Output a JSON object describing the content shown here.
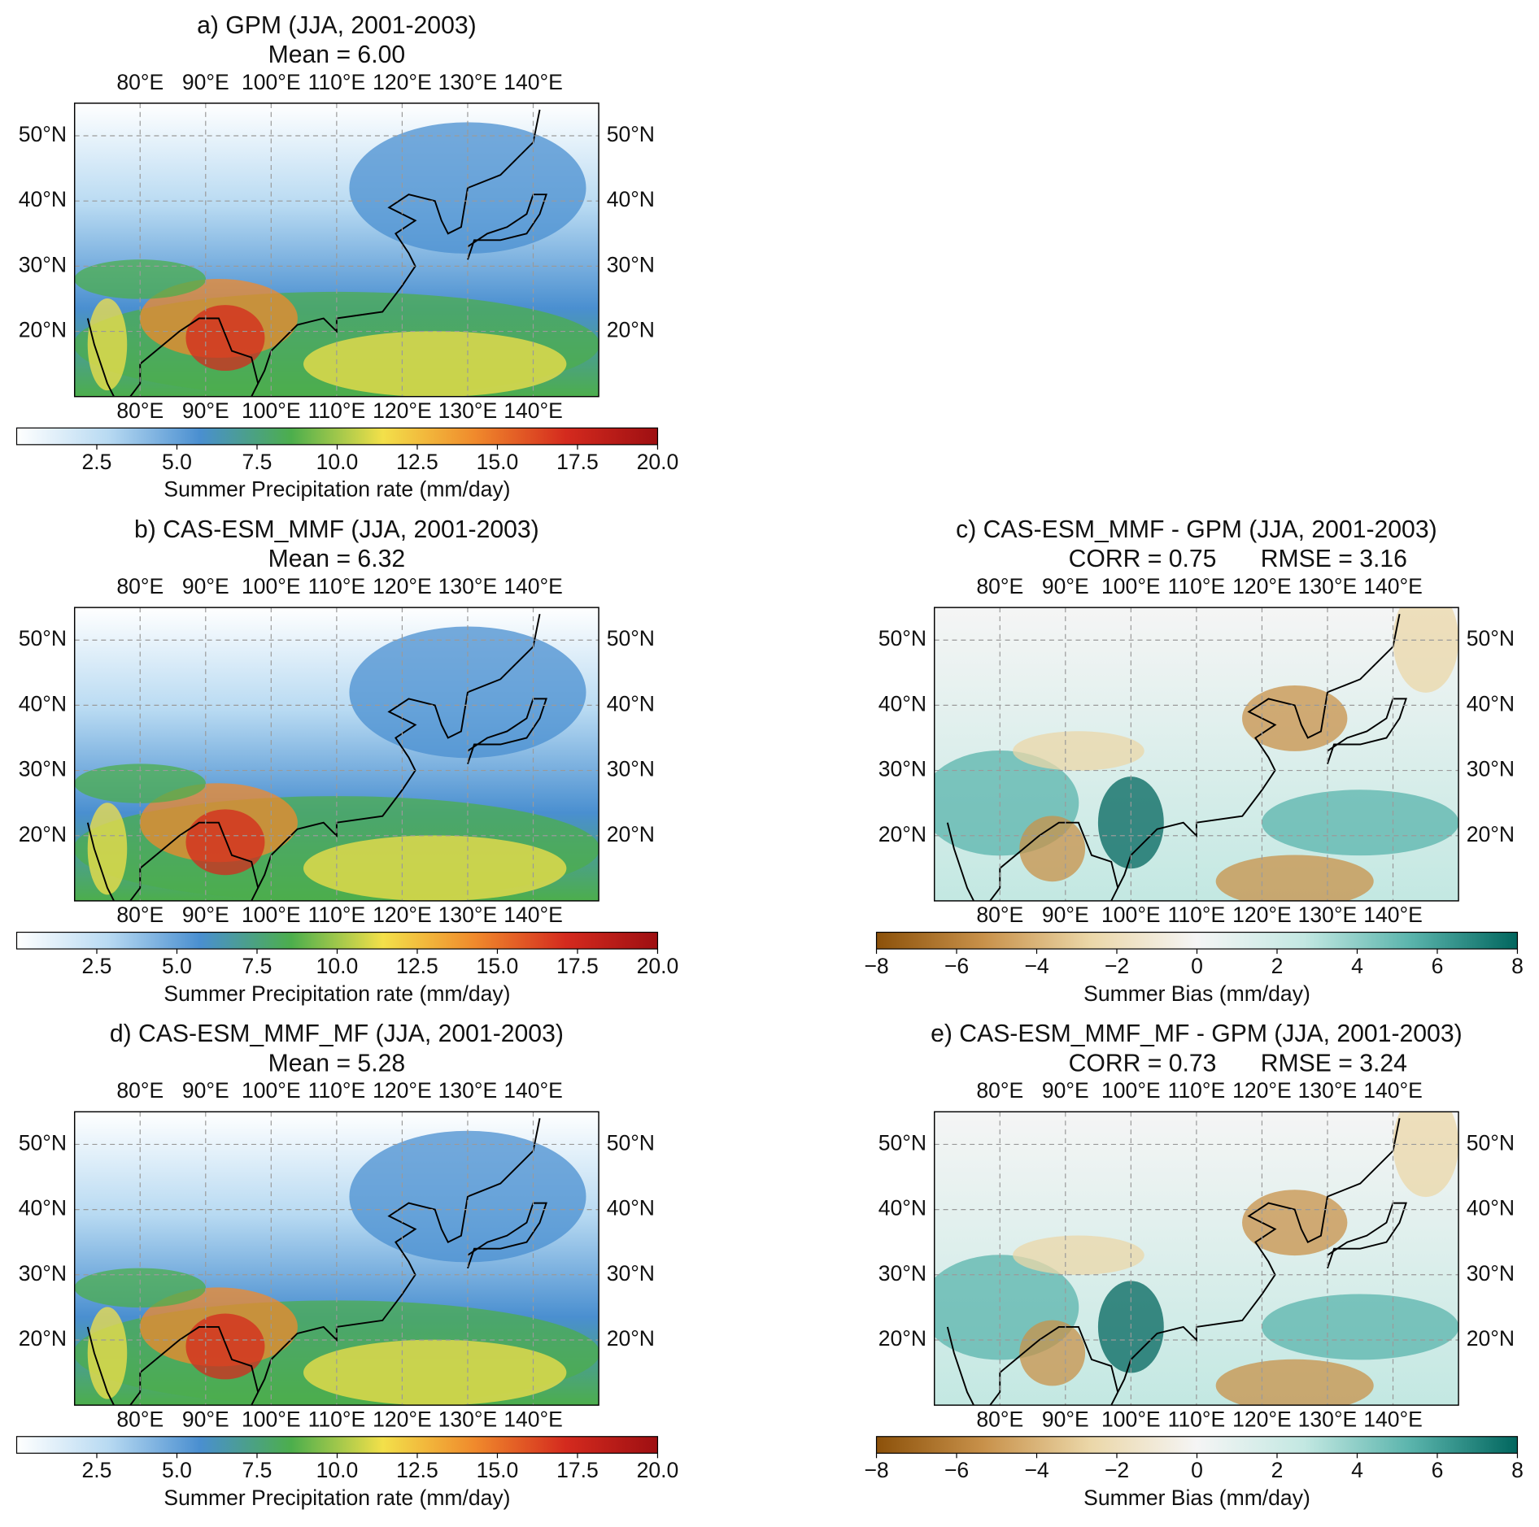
{
  "map": {
    "xlim": [
      70,
      150
    ],
    "ylim": [
      10,
      55
    ],
    "xticks": [
      {
        "value": 80,
        "label": "80°E"
      },
      {
        "value": 90,
        "label": "90°E"
      },
      {
        "value": 100,
        "label": "100°E"
      },
      {
        "value": 110,
        "label": "110°E"
      },
      {
        "value": 120,
        "label": "120°E"
      },
      {
        "value": 130,
        "label": "130°E"
      },
      {
        "value": 140,
        "label": "140°E"
      }
    ],
    "yticks": [
      {
        "value": 20,
        "label": "20°N"
      },
      {
        "value": 30,
        "label": "30°N"
      },
      {
        "value": 40,
        "label": "40°N"
      },
      {
        "value": 50,
        "label": "50°N"
      }
    ],
    "grid": true
  },
  "panels": [
    {
      "kind": "precip",
      "title": "a) GPM (JJA, 2001-2003)",
      "subtitle": "Mean = 6.00",
      "colorbar": {
        "label": "Summer Precipitation rate (mm/day)",
        "lim": [
          0,
          20
        ],
        "ticks": [
          2.5,
          {
            "value": 5,
            "label": "5.0"
          },
          7.5,
          {
            "value": 10,
            "label": "10.0"
          },
          12.5,
          {
            "value": 15,
            "label": "15.0"
          },
          17.5,
          {
            "value": 20,
            "label": "20.0"
          }
        ],
        "colors": [
          "#ffffff",
          "#b8daf2",
          "#4a8fd0",
          "#4cae4c",
          "#f3e04a",
          "#f08a2c",
          "#d42a1e",
          "#9e0f12"
        ]
      }
    },
    {
      "kind": "precip",
      "title": "b) CAS-ESM_MMF (JJA, 2001-2003)",
      "subtitle": "Mean = 6.32",
      "colorbar": {
        "label": "Summer Precipitation rate (mm/day)",
        "lim": [
          0,
          20
        ],
        "ticks": [
          2.5,
          {
            "value": 5,
            "label": "5.0"
          },
          7.5,
          {
            "value": 10,
            "label": "10.0"
          },
          12.5,
          {
            "value": 15,
            "label": "15.0"
          },
          17.5,
          {
            "value": 20,
            "label": "20.0"
          }
        ],
        "colors": [
          "#ffffff",
          "#b8daf2",
          "#4a8fd0",
          "#4cae4c",
          "#f3e04a",
          "#f08a2c",
          "#d42a1e",
          "#9e0f12"
        ]
      }
    },
    {
      "kind": "bias",
      "title": "c) CAS-ESM_MMF - GPM (JJA, 2001-2003)",
      "corr": "CORR = 0.75",
      "rmse": "RMSE = 3.16",
      "colorbar": {
        "label": "Summer Bias (mm/day)",
        "lim": [
          -8,
          8
        ],
        "ticks": [
          {
            "value": -8,
            "label": "−8"
          },
          {
            "value": -6,
            "label": "−6"
          },
          {
            "value": -4,
            "label": "−4"
          },
          {
            "value": -2,
            "label": "−2"
          },
          0,
          2,
          4,
          6,
          8
        ],
        "colors": [
          "#8c510a",
          "#c8914a",
          "#ebd7a8",
          "#f5f5f5",
          "#c3e8e2",
          "#5ab4ac",
          "#01665e"
        ]
      }
    },
    {
      "kind": "precip",
      "title": "d) CAS-ESM_MMF_MF (JJA, 2001-2003)",
      "subtitle": "Mean = 5.28",
      "colorbar": {
        "label": "Summer Precipitation rate (mm/day)",
        "lim": [
          0,
          20
        ],
        "ticks": [
          2.5,
          {
            "value": 5,
            "label": "5.0"
          },
          7.5,
          {
            "value": 10,
            "label": "10.0"
          },
          12.5,
          {
            "value": 15,
            "label": "15.0"
          },
          17.5,
          {
            "value": 20,
            "label": "20.0"
          }
        ],
        "colors": [
          "#ffffff",
          "#b8daf2",
          "#4a8fd0",
          "#4cae4c",
          "#f3e04a",
          "#f08a2c",
          "#d42a1e",
          "#9e0f12"
        ]
      }
    },
    {
      "kind": "bias",
      "title": "e) CAS-ESM_MMF_MF - GPM (JJA, 2001-2003)",
      "corr": "CORR = 0.73",
      "rmse": "RMSE = 3.24",
      "colorbar": {
        "label": "Summer Bias (mm/day)",
        "lim": [
          -8,
          8
        ],
        "ticks": [
          {
            "value": -8,
            "label": "−8"
          },
          {
            "value": -6,
            "label": "−6"
          },
          {
            "value": -4,
            "label": "−4"
          },
          {
            "value": -2,
            "label": "−2"
          },
          0,
          2,
          4,
          6,
          8
        ],
        "colors": [
          "#8c510a",
          "#c8914a",
          "#ebd7a8",
          "#f5f5f5",
          "#c3e8e2",
          "#5ab4ac",
          "#01665e"
        ]
      }
    }
  ]
}
